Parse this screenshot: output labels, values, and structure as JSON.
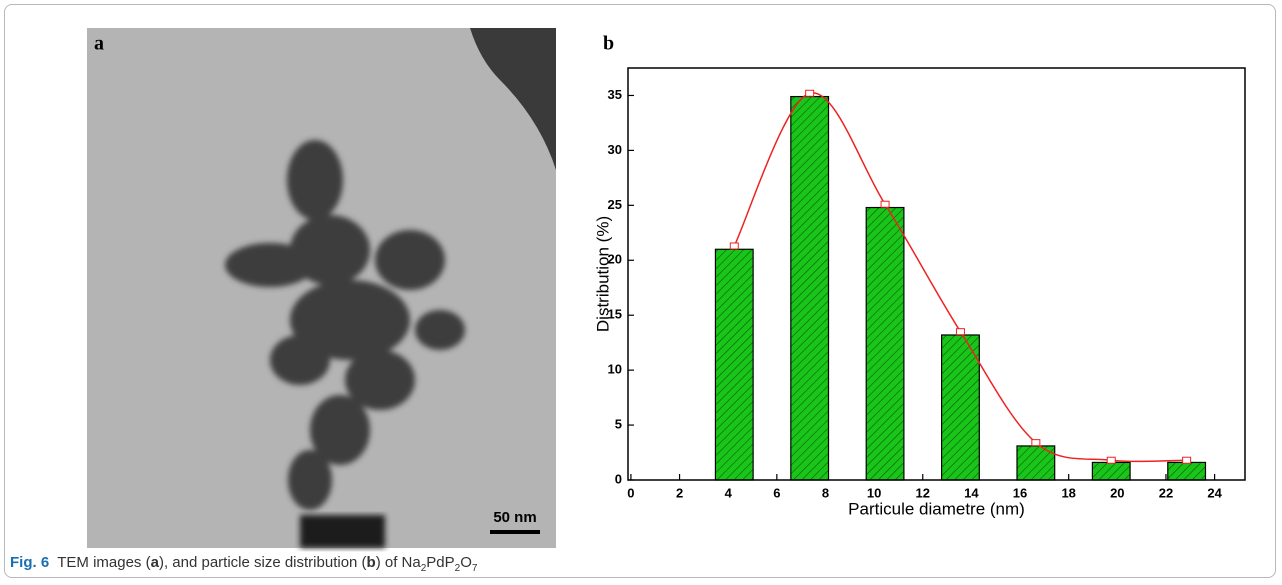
{
  "figure": {
    "panel_a_label": "a",
    "panel_b_label": "b",
    "scale_bar_label": "50 nm",
    "caption": {
      "label": "Fig. 6",
      "parts": [
        "TEM images (",
        "a",
        "), and particle size distribution (",
        "b",
        ") of Na",
        "2",
        "PdP",
        "2",
        "O",
        "7"
      ]
    }
  },
  "chart_data": {
    "type": "bar",
    "x_label": "Particule diametre (nm)",
    "y_label": "Distribution (%)",
    "x": [
      4.25,
      7.35,
      10.45,
      13.55,
      16.65,
      19.75,
      22.85
    ],
    "values": [
      21,
      34.9,
      24.8,
      13.2,
      3.1,
      1.6,
      1.6
    ],
    "fit_values": [
      21.3,
      35.2,
      25.1,
      13.5,
      3.4,
      1.8,
      1.8
    ],
    "color": "#19c519",
    "fit_color": "#ee2222",
    "xlim": [
      -0.12,
      25.25
    ],
    "xticks": [
      0,
      2,
      4,
      6,
      8,
      10,
      12,
      14,
      16,
      18,
      20,
      22,
      24
    ],
    "ylim": [
      0,
      37.5
    ],
    "yticks": [
      0,
      5,
      10,
      15,
      20,
      25,
      30,
      35
    ]
  }
}
